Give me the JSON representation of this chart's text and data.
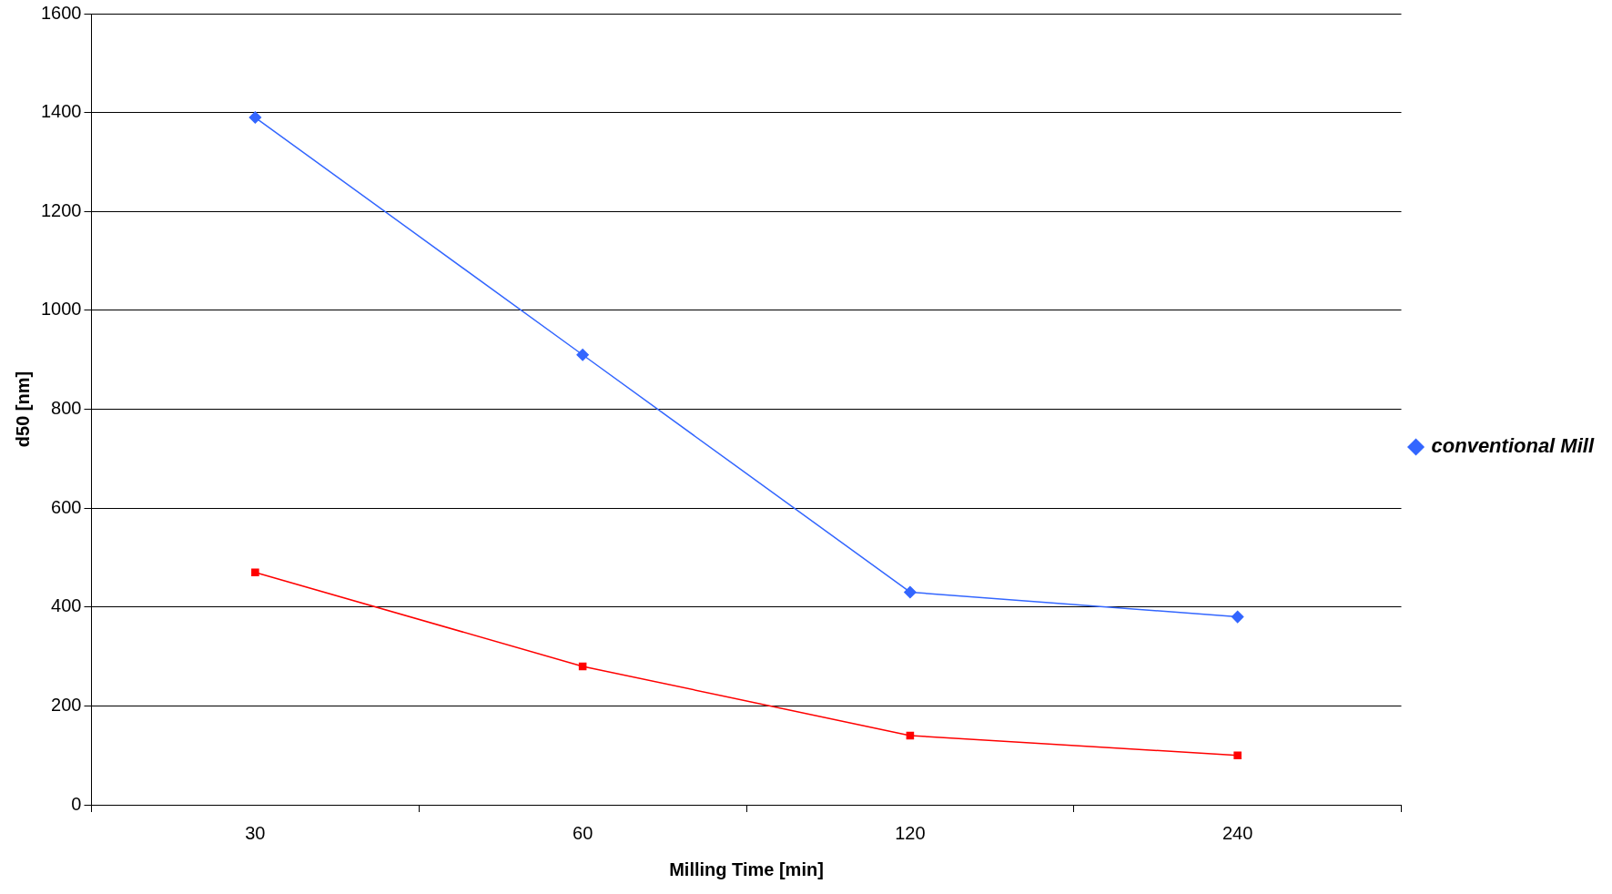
{
  "chart_data": {
    "type": "line",
    "xlabel": "Milling Time [min]",
    "ylabel": "d50 [nm]",
    "categories": [
      "30",
      "60",
      "120",
      "240"
    ],
    "series": [
      {
        "name": "conventional Mill",
        "color": "#3366ff",
        "marker": "diamond",
        "values": [
          1390,
          910,
          430,
          380
        ]
      },
      {
        "color": "#ff0000",
        "marker": "square",
        "values": [
          470,
          280,
          140,
          100
        ]
      }
    ],
    "ylim": [
      0,
      1600
    ],
    "yticks": [
      0,
      200,
      400,
      600,
      800,
      1000,
      1200,
      1400,
      1600
    ],
    "grid": "y",
    "legend": "right",
    "line_style": "solid"
  }
}
